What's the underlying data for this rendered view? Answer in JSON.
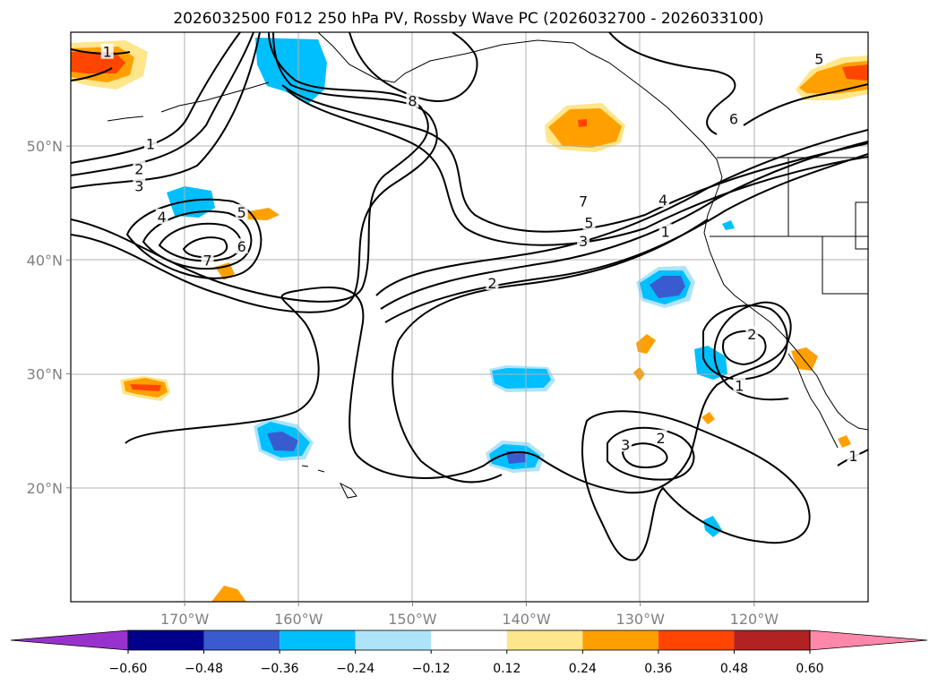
{
  "chart_data": {
    "type": "contour_map",
    "title": "2026032500 F012 250 hPa PV, Rossby Wave PC (2026032700 - 2026033100)",
    "projection": "equirectangular",
    "lon_range": [
      -180,
      -110
    ],
    "lat_range": [
      10,
      60
    ],
    "lon_ticks": [
      {
        "value": -170,
        "label": "170°W"
      },
      {
        "value": -160,
        "label": "160°W"
      },
      {
        "value": -150,
        "label": "150°W"
      },
      {
        "value": -140,
        "label": "140°W"
      },
      {
        "value": -130,
        "label": "130°W"
      },
      {
        "value": -120,
        "label": "120°W"
      }
    ],
    "lat_ticks": [
      {
        "value": 50,
        "label": "50°N"
      },
      {
        "value": 40,
        "label": "40°N"
      },
      {
        "value": 30,
        "label": "30°N"
      },
      {
        "value": 20,
        "label": "20°N"
      }
    ],
    "colorbar": {
      "levels": [
        -0.6,
        -0.48,
        -0.36,
        -0.24,
        -0.12,
        0.12,
        0.24,
        0.36,
        0.48,
        0.6
      ],
      "tick_labels": [
        "−0.60",
        "−0.48",
        "−0.36",
        "−0.24",
        "−0.12",
        "0.12",
        "0.24",
        "0.36",
        "0.48",
        "0.60"
      ],
      "colors": [
        "#9932cc",
        "#00008b",
        "#3a5bd0",
        "#00bfff",
        "#ade4fa",
        "#ffffff",
        "#ffe68a",
        "#ffa000",
        "#ff4500",
        "#b22222",
        "#ff88aa"
      ],
      "extend": "both"
    },
    "contour_labels": [
      {
        "text": "1",
        "lon": -173,
        "lat": 50.2
      },
      {
        "text": "2",
        "lon": -174,
        "lat": 48.0
      },
      {
        "text": "3",
        "lon": -174,
        "lat": 46.5
      },
      {
        "text": "4",
        "lon": -172,
        "lat": 43.8
      },
      {
        "text": "5",
        "lon": -165,
        "lat": 44.2
      },
      {
        "text": "6",
        "lon": -165,
        "lat": 41.2
      },
      {
        "text": "7",
        "lon": -168,
        "lat": 40.0
      },
      {
        "text": "8",
        "lon": -150,
        "lat": 54.0
      },
      {
        "text": "7",
        "lon": -135,
        "lat": 45.2
      },
      {
        "text": "5",
        "lon": -134.5,
        "lat": 43.3
      },
      {
        "text": "4",
        "lon": -128,
        "lat": 45.3
      },
      {
        "text": "3",
        "lon": -135,
        "lat": 41.7
      },
      {
        "text": "1",
        "lon": -127.8,
        "lat": 42.5
      },
      {
        "text": "2",
        "lon": -143,
        "lat": 38.0
      },
      {
        "text": "6",
        "lon": -121.8,
        "lat": 52.4
      },
      {
        "text": "5",
        "lon": -114.3,
        "lat": 57.7
      },
      {
        "text": "1",
        "lon": -176.8,
        "lat": 58.3
      },
      {
        "text": "2",
        "lon": -120.2,
        "lat": 33.5
      },
      {
        "text": "1",
        "lon": -121.3,
        "lat": 29.0
      },
      {
        "text": "2",
        "lon": -128.2,
        "lat": 24.4
      },
      {
        "text": "3",
        "lon": -131.3,
        "lat": 23.8
      },
      {
        "text": "1",
        "lon": -111.3,
        "lat": 22.8
      }
    ]
  }
}
